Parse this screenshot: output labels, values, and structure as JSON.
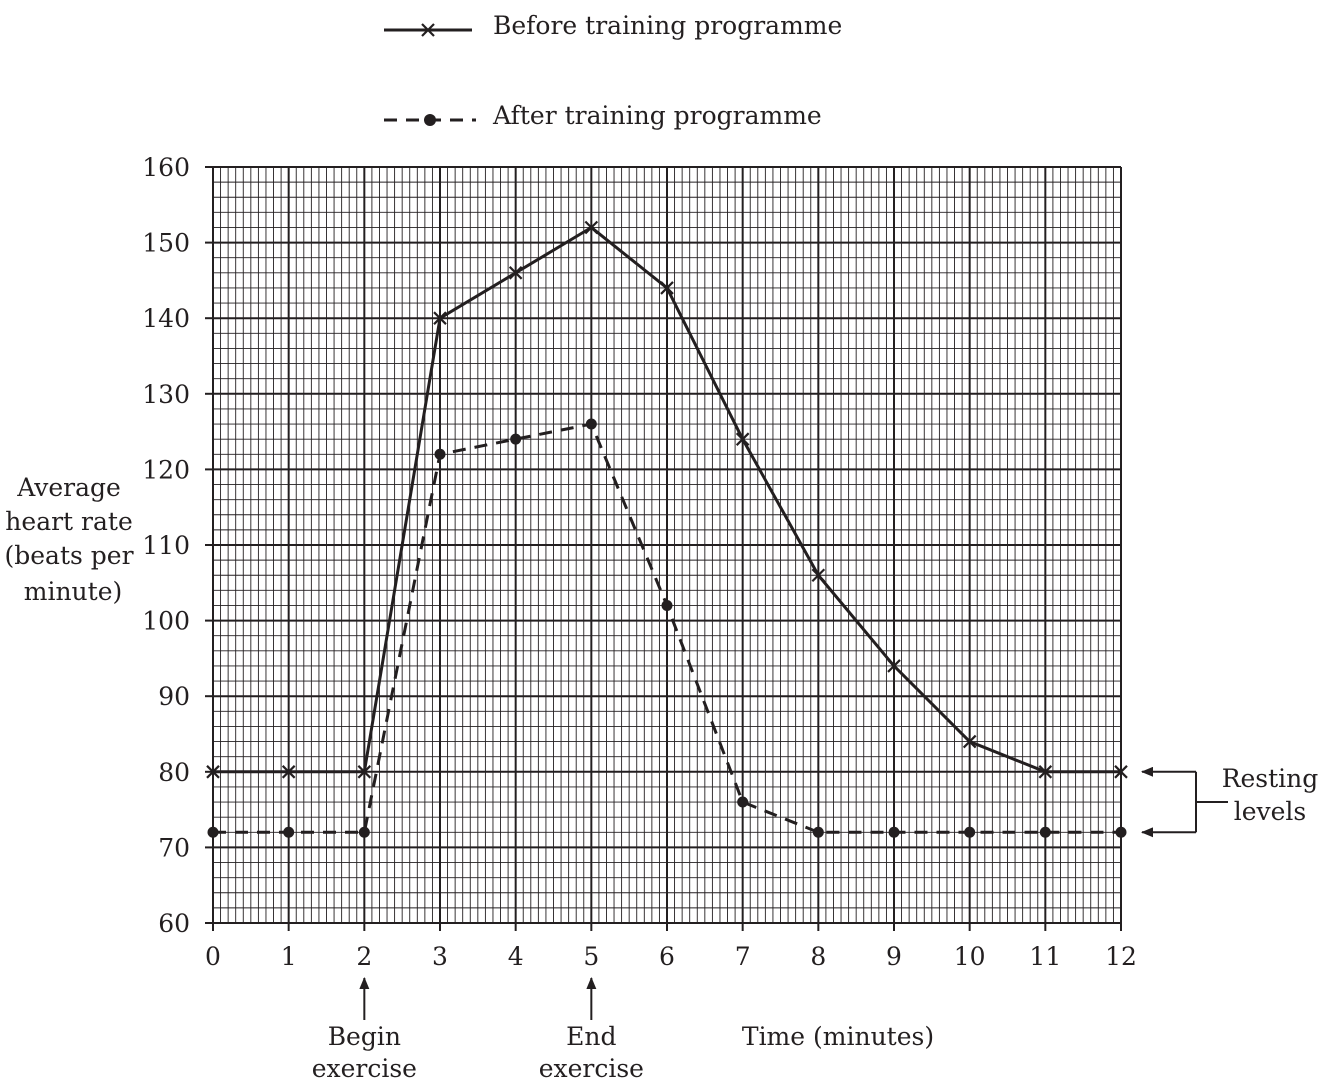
{
  "chart_data": {
    "type": "line",
    "x": [
      0,
      1,
      2,
      3,
      4,
      5,
      6,
      7,
      8,
      9,
      10,
      11,
      12
    ],
    "series": [
      {
        "name": "Before training programme",
        "style": "solid-cross",
        "values": [
          80,
          80,
          80,
          140,
          146,
          152,
          144,
          124,
          106,
          94,
          84,
          80,
          80
        ]
      },
      {
        "name": "After training programme",
        "style": "dashed-dot",
        "values": [
          72,
          72,
          72,
          122,
          124,
          126,
          102,
          76,
          72,
          72,
          72,
          72,
          72
        ]
      }
    ],
    "xlabel": "Time (minutes)",
    "ylabel": [
      "Average",
      "heart rate",
      "(beats per",
      "minute)"
    ],
    "xlim": [
      0,
      12
    ],
    "ylim": [
      60,
      160
    ],
    "xticks": [
      "0",
      "1",
      "2",
      "3",
      "4",
      "5",
      "6",
      "7",
      "8",
      "9",
      "10",
      "11",
      "12"
    ],
    "yticks": [
      "60",
      "70",
      "80",
      "90",
      "100",
      "110",
      "120",
      "130",
      "140",
      "150",
      "160"
    ],
    "grid": true,
    "legend_position": "top-center",
    "annotations": {
      "begin": {
        "x": 2,
        "lines": [
          "Begin",
          "exercise"
        ]
      },
      "end": {
        "x": 5,
        "lines": [
          "End",
          "exercise"
        ]
      },
      "resting": {
        "targets": [
          80,
          72
        ],
        "lines": [
          "Resting",
          "levels"
        ]
      }
    },
    "colors": {
      "ink": "#231f20",
      "background": "#ffffff"
    }
  }
}
